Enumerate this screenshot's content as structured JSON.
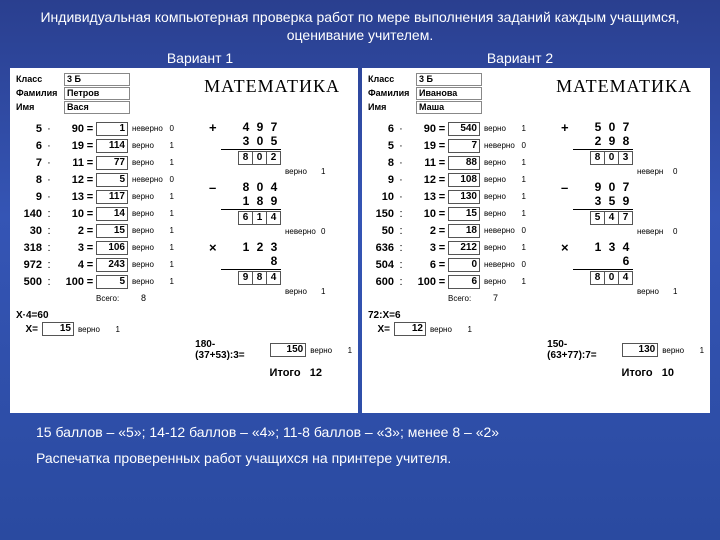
{
  "header_text": "Индивидуальная компьютерная проверка работ по мере выполнения заданий каждым учащимся, оценивание учителем.",
  "variant1_label": "Вариант 1",
  "variant2_label": "Вариант 2",
  "grading_text": "15 баллов – «5»; 14-12 баллов – «4»; 11-8 баллов – «3»; менее 8 – «2»",
  "print_text": "Распечатка проверенных работ учащихся на принтере учителя.",
  "labels": {
    "class": "Класс",
    "surname": "Фамилия",
    "name": "Имя",
    "subject": "МАТЕМАТИКА",
    "total": "Всего:",
    "itogo": "Итого",
    "verno": "верно",
    "neverno": "неверно",
    "nevern": "неверн"
  },
  "sheet1": {
    "class": "3 Б",
    "surname": "Петров",
    "name": "Вася",
    "rows": [
      {
        "a": "5",
        "op": "·",
        "b": "90",
        "ans": "1",
        "mark": "неверно",
        "pt": "0"
      },
      {
        "a": "6",
        "op": "·",
        "b": "19",
        "ans": "114",
        "mark": "верно",
        "pt": "1"
      },
      {
        "a": "7",
        "op": "·",
        "b": "11",
        "ans": "77",
        "mark": "верно",
        "pt": "1"
      },
      {
        "a": "8",
        "op": "·",
        "b": "12",
        "ans": "5",
        "mark": "неверно",
        "pt": "0"
      },
      {
        "a": "9",
        "op": "·",
        "b": "13",
        "ans": "117",
        "mark": "верно",
        "pt": "1"
      },
      {
        "a": "140",
        "op": ":",
        "b": "10",
        "ans": "14",
        "mark": "верно",
        "pt": "1"
      },
      {
        "a": "30",
        "op": ":",
        "b": "2",
        "ans": "15",
        "mark": "верно",
        "pt": "1"
      },
      {
        "a": "318",
        "op": ":",
        "b": "3",
        "ans": "106",
        "mark": "верно",
        "pt": "1"
      },
      {
        "a": "972",
        "op": ":",
        "b": "4",
        "ans": "243",
        "mark": "верно",
        "pt": "1"
      },
      {
        "a": "500",
        "op": ":",
        "b": "100",
        "ans": "5",
        "mark": "верно",
        "pt": "1"
      }
    ],
    "total": "8",
    "eq_label": "X·4=60",
    "x_ans": "15",
    "x_mark": "верно",
    "x_pt": "1",
    "expr": "180-(37+53):3=",
    "expr_ans": "150",
    "expr_mark": "верно",
    "expr_pt": "1",
    "itogo": "12",
    "cols": [
      {
        "sign": "+",
        "l1": [
          "4",
          "9",
          "7"
        ],
        "l2": [
          "3",
          "0",
          "5"
        ],
        "res": [
          "8",
          "0",
          "2"
        ],
        "mark": "верно",
        "pt": "1"
      },
      {
        "sign": "–",
        "l1": [
          "8",
          "0",
          "4"
        ],
        "l2": [
          "1",
          "8",
          "9"
        ],
        "res": [
          "6",
          "1",
          "4"
        ],
        "mark": "неверно",
        "pt": "0"
      },
      {
        "sign": "×",
        "l1": [
          "1",
          "2",
          "3"
        ],
        "l2": [
          "",
          "",
          "8"
        ],
        "res": [
          "9",
          "8",
          "4"
        ],
        "mark": "верно",
        "pt": "1"
      }
    ]
  },
  "sheet2": {
    "class": "3 Б",
    "surname": "Иванова",
    "name": "Маша",
    "rows": [
      {
        "a": "6",
        "op": "·",
        "b": "90",
        "ans": "540",
        "mark": "верно",
        "pt": "1"
      },
      {
        "a": "5",
        "op": "·",
        "b": "19",
        "ans": "7",
        "mark": "неверно",
        "pt": "0"
      },
      {
        "a": "8",
        "op": "·",
        "b": "11",
        "ans": "88",
        "mark": "верно",
        "pt": "1"
      },
      {
        "a": "9",
        "op": "·",
        "b": "12",
        "ans": "108",
        "mark": "верно",
        "pt": "1"
      },
      {
        "a": "10",
        "op": "·",
        "b": "13",
        "ans": "130",
        "mark": "верно",
        "pt": "1"
      },
      {
        "a": "150",
        "op": ":",
        "b": "10",
        "ans": "15",
        "mark": "верно",
        "pt": "1"
      },
      {
        "a": "50",
        "op": ":",
        "b": "2",
        "ans": "18",
        "mark": "неверно",
        "pt": "0"
      },
      {
        "a": "636",
        "op": ":",
        "b": "3",
        "ans": "212",
        "mark": "верно",
        "pt": "1"
      },
      {
        "a": "504",
        "op": ":",
        "b": "6",
        "ans": "0",
        "mark": "неверно",
        "pt": "0"
      },
      {
        "a": "600",
        "op": ":",
        "b": "100",
        "ans": "6",
        "mark": "верно",
        "pt": "1"
      }
    ],
    "total": "7",
    "eq_label": "72:X=6",
    "x_ans": "12",
    "x_mark": "верно",
    "x_pt": "1",
    "expr": "150-(63+77):7=",
    "expr_ans": "130",
    "expr_mark": "верно",
    "expr_pt": "1",
    "itogo": "10",
    "cols": [
      {
        "sign": "+",
        "l1": [
          "5",
          "0",
          "7"
        ],
        "l2": [
          "2",
          "9",
          "8"
        ],
        "res": [
          "8",
          "0",
          "3"
        ],
        "mark": "неверн",
        "pt": "0"
      },
      {
        "sign": "–",
        "l1": [
          "9",
          "0",
          "7"
        ],
        "l2": [
          "3",
          "5",
          "9"
        ],
        "res": [
          "5",
          "4",
          "7"
        ],
        "mark": "неверн",
        "pt": "0"
      },
      {
        "sign": "×",
        "l1": [
          "1",
          "3",
          "4"
        ],
        "l2": [
          "",
          "",
          "6"
        ],
        "res": [
          "8",
          "0",
          "4"
        ],
        "mark": "верно",
        "pt": "1"
      }
    ]
  }
}
